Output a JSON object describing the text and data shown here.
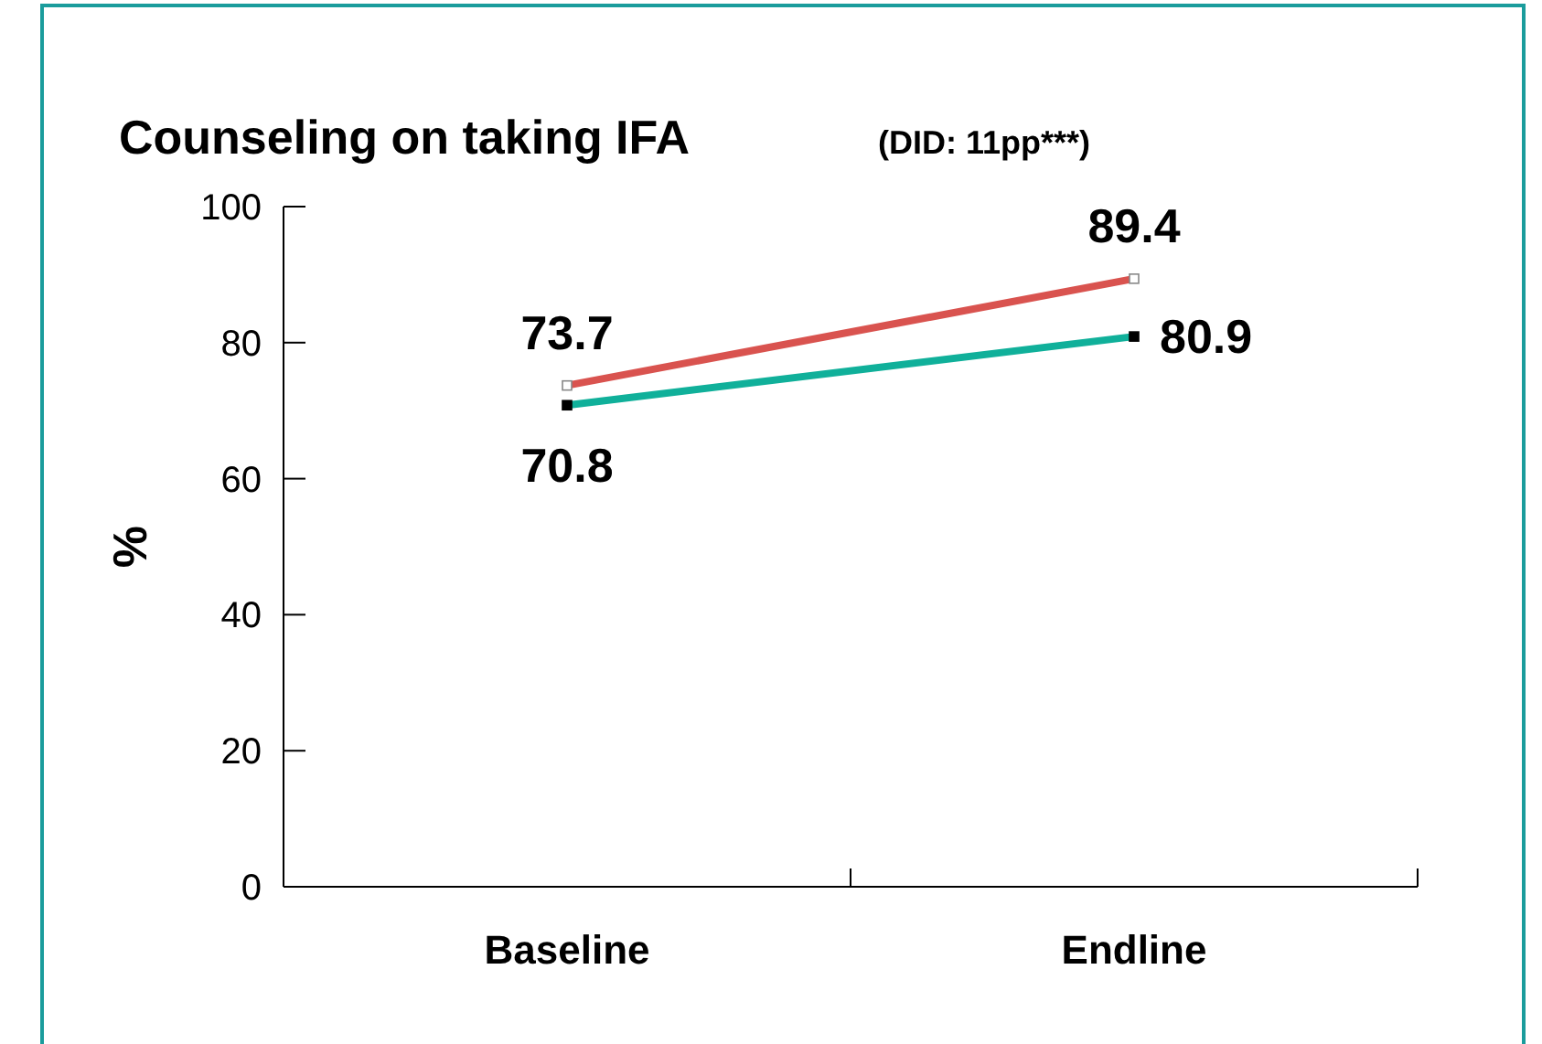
{
  "chart_data": {
    "type": "line",
    "title": "Counseling on taking IFA",
    "subtitle": "(DID: 11pp***)",
    "ylabel": "%",
    "categories": [
      "Baseline",
      "Endline"
    ],
    "series": [
      {
        "color": "#d9534f",
        "values": [
          73.7,
          89.4
        ]
      },
      {
        "color": "#10b09a",
        "values": [
          70.8,
          80.9
        ]
      }
    ],
    "ylim": [
      0,
      100
    ],
    "yticks": [
      0,
      20,
      40,
      60,
      80,
      100
    ],
    "marker": "square",
    "data_labels": true
  }
}
